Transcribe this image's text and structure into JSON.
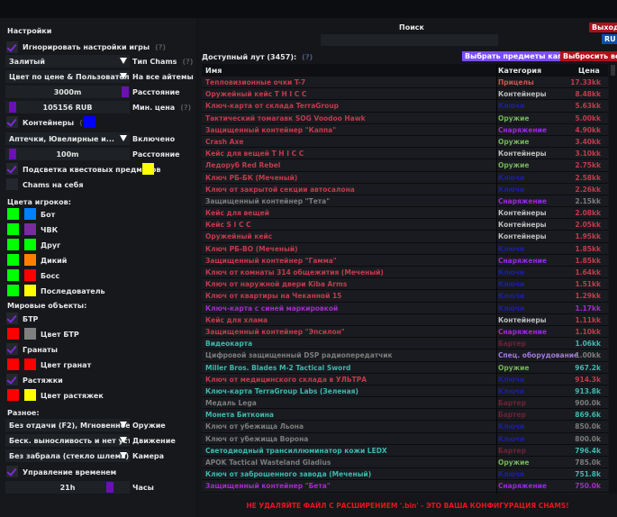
{
  "colors": {
    "accent": "#7a2bd6",
    "red": "#c23a4c",
    "teal": "#3fb7ad",
    "gray": "#7c7c7c",
    "purple": "#a22cc8"
  },
  "left": {
    "title": "Настройки",
    "ignore_game_settings": {
      "label": "Игнорировать настройки игры",
      "help": "(?)",
      "checked": true
    },
    "chams_type": {
      "value": "Залитый",
      "label": "Тип Chams",
      "help": "(?)"
    },
    "color_mode": {
      "value": "Цвет по цене & Пользовательс",
      "label": "На все айтемы"
    },
    "distance": {
      "value": "3000m",
      "label": "Расстояние",
      "level": 1.0
    },
    "min_price": {
      "value": "105156 RUB",
      "label": "Мин. цена",
      "help": "(?)",
      "level": 0.02
    },
    "containers": {
      "label": "Контейнеры",
      "help": "(?)",
      "checked": true,
      "color": "#0000ff"
    },
    "container_types": {
      "value": "Аптечки, Ювелирные и...",
      "label": "Включено"
    },
    "container_distance": {
      "value": "100m",
      "label": "Расстояние",
      "level": 0.0
    },
    "quest_highlight": {
      "label": "Подсветка квестовых предметов",
      "checked": true,
      "color": "#ffff00"
    },
    "self_chams": {
      "label": "Chams на себя",
      "checked": false
    },
    "player_colors_title": "Цвета игроков:",
    "players": [
      {
        "label": "Бот",
        "c1": "#00ff00",
        "c2": "#0080ff"
      },
      {
        "label": "ЧВК",
        "c1": "#00ff00",
        "c2": "#7a2ba0"
      },
      {
        "label": "Друг",
        "c1": "#00ff00",
        "c2": "#00ff00"
      },
      {
        "label": "Дикий",
        "c1": "#00ff00",
        "c2": "#ff8000"
      },
      {
        "label": "Босс",
        "c1": "#00ff00",
        "c2": "#ff0000"
      },
      {
        "label": "Последователь",
        "c1": "#00ff00",
        "c2": "#ffff00"
      }
    ],
    "world_title": "Мировые объекты:",
    "btr": {
      "label": "БТР",
      "checked": true,
      "color_label": "Цвет БТР",
      "c1": "#ff0000",
      "c2": "#808080"
    },
    "grenades": {
      "label": "Гранаты",
      "checked": true,
      "color_label": "Цвет гранат",
      "c1": "#ff0000",
      "c2": "#ff0000"
    },
    "tripwires": {
      "label": "Растяжки",
      "checked": true,
      "color_label": "Цвет растяжек",
      "c1": "#ff0000",
      "c2": "#ffff00"
    },
    "misc_title": "Разное:",
    "weapon": {
      "value": "Без отдачи (F2), Мгновенное п",
      "label": "Оружие"
    },
    "movement": {
      "value": "Беск. выносливость и нет уста",
      "label": "Движение"
    },
    "camera": {
      "value": "Без забрала (стекло шлема)",
      "label": "Камера"
    },
    "time_control": {
      "label": "Управление временем",
      "checked": true
    },
    "hours": {
      "value": "21h",
      "label": "Часы",
      "level": 0.875
    }
  },
  "right": {
    "search_label": "Поиск",
    "search_value": "",
    "exit": "Выход",
    "lang": "RU",
    "loot_title": "Доступный лут (3457):",
    "loot_help": "(?)",
    "select_kappa": "Выбрать предметы каппа",
    "drop_all": "Выбросить все",
    "columns": [
      "Имя",
      "Категория",
      "Цена"
    ],
    "category_colors": {
      "Прицелы": "#c9564f",
      "Контейнеры": "#bdbdbd",
      "Ключи": "#1c1ca8",
      "Оружие": "#74b35a",
      "Снаряжение": "#9a28e0",
      "Бартер": "#6b2234",
      "Спец. оборудование": "#a07ad8"
    },
    "rows": [
      [
        "Тепловизионные очки T-7",
        "Прицелы",
        "17.33kk",
        "red"
      ],
      [
        "Оружейный кейс T H I C C",
        "Контейнеры",
        "8.48kk",
        "red"
      ],
      [
        "Ключ-карта от склада TerraGroup",
        "Ключи",
        "5.63kk",
        "red"
      ],
      [
        "Тактический томагавк SOG Voodoo Hawk",
        "Оружие",
        "5.00kk",
        "red"
      ],
      [
        "Защищенный контейнер \"Каппа\"",
        "Снаряжение",
        "4.90kk",
        "red"
      ],
      [
        "Crash Axe",
        "Оружие",
        "3.40kk",
        "red"
      ],
      [
        "Кейс для вещей T H I C C",
        "Контейнеры",
        "3.10kk",
        "red"
      ],
      [
        "Ледоруб Red Rebel",
        "Оружие",
        "2.75kk",
        "red"
      ],
      [
        "Ключ РБ-БК (Меченый)",
        "Ключи",
        "2.58kk",
        "red"
      ],
      [
        "Ключ от закрытой секции автосалона",
        "Ключи",
        "2.26kk",
        "red"
      ],
      [
        "Защищенный контейнер \"Тета\"",
        "Снаряжение",
        "2.15kk",
        "gray"
      ],
      [
        "Кейс для вещей",
        "Контейнеры",
        "2.08kk",
        "red"
      ],
      [
        "Кейс S I C C",
        "Контейнеры",
        "2.05kk",
        "red"
      ],
      [
        "Оружейный кейс",
        "Контейнеры",
        "1.95kk",
        "red"
      ],
      [
        "Ключ РБ-ВО (Меченый)",
        "Ключи",
        "1.85kk",
        "red"
      ],
      [
        "Защищенный контейнер \"Гамма\"",
        "Снаряжение",
        "1.85kk",
        "red"
      ],
      [
        "Ключ от комнаты 314 общежития (Меченый)",
        "Ключи",
        "1.64kk",
        "red"
      ],
      [
        "Ключ от наружной двери Kiba Arms",
        "Ключи",
        "1.51kk",
        "red"
      ],
      [
        "Ключ от квартиры на Чеканной 15",
        "Ключи",
        "1.29kk",
        "red"
      ],
      [
        "Ключ-карта с синей маркировкой",
        "Ключи",
        "1.17kk",
        "purple"
      ],
      [
        "Кейс для хлама",
        "Контейнеры",
        "1.11kk",
        "red"
      ],
      [
        "Защищенный контейнер \"Эпсилон\"",
        "Снаряжение",
        "1.10kk",
        "red"
      ],
      [
        "Видеокарта",
        "Бартер",
        "1.06kk",
        "teal"
      ],
      [
        "Цифровой защищенный DSP радиопередатчик",
        "Спец. оборудование",
        "1.00kk",
        "gray"
      ],
      [
        "Miller Bros. Blades M-2 Tactical Sword",
        "Оружие",
        "967.2k",
        "teal"
      ],
      [
        "Ключ от медицинского склада в УЛЬТРА",
        "Ключи",
        "914.3k",
        "red"
      ],
      [
        "Ключ-карта TerraGroup Labs (Зеленая)",
        "Ключи",
        "913.8k",
        "teal"
      ],
      [
        "Медаль Lega",
        "Бартер",
        "900.0k",
        "gray"
      ],
      [
        "Монета Биткоина",
        "Бартер",
        "869.6k",
        "teal"
      ],
      [
        "Ключ от убежища Льона",
        "Ключи",
        "850.0k",
        "gray"
      ],
      [
        "Ключ от убежища Ворона",
        "Ключи",
        "800.0k",
        "gray"
      ],
      [
        "Светодиодный трансиллюминатор кожи LEDX",
        "Бартер",
        "796.4k",
        "teal"
      ],
      [
        "APOK Tactical Wasteland Gladius",
        "Оружие",
        "785.0k",
        "gray"
      ],
      [
        "Ключ от заброшенного завода (Меченый)",
        "Ключи",
        "751.8k",
        "teal"
      ],
      [
        "Защищенный контейнер \"Бета\"",
        "Снаряжение",
        "750.0k",
        "purple"
      ]
    ],
    "warning": "НЕ УДАЛЯЙТЕ ФАЙЛ С РАСШИРЕНИЕМ '.bin' - ЭТО ВАША КОНФИГУРАЦИЯ CHAMS!"
  }
}
